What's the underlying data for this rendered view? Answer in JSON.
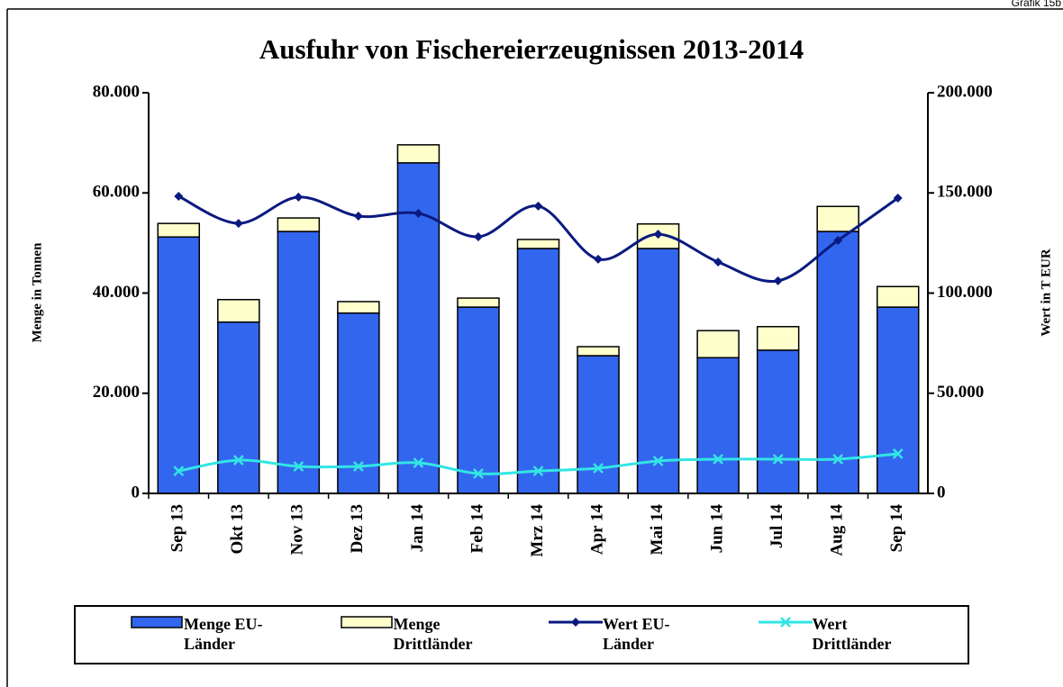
{
  "chart_data": {
    "type": "bar",
    "stacked": true,
    "title": "Ausfuhr von Fischereierzeugnissen 2013-2014",
    "corner_label": "Grafik 15b",
    "y_label": "Menge in Tonnen",
    "y2_label": "Wert in T EUR",
    "categories": [
      "Sep 13",
      "Okt 13",
      "Nov 13",
      "Dez 13",
      "Jan 14",
      "Feb 14",
      "Mrz 14",
      "Apr 14",
      "Mai 14",
      "Jun 14",
      "Jul 14",
      "Aug 14",
      "Sep 14"
    ],
    "ylim": [
      0,
      80000
    ],
    "yticks": [
      0,
      {
        "value": 20000,
        "label": "20.000"
      },
      {
        "value": 40000,
        "label": "40.000"
      },
      {
        "value": 60000,
        "label": "60.000"
      },
      {
        "value": 80000,
        "label": "80.000"
      }
    ],
    "y2lim": [
      0,
      200000
    ],
    "y2ticks": [
      0,
      {
        "value": 50000,
        "label": "50.000"
      },
      {
        "value": 100000,
        "label": "100.000"
      },
      {
        "value": 150000,
        "label": "150.000"
      },
      {
        "value": 200000,
        "label": "200.000"
      }
    ],
    "series": [
      {
        "name": "Menge EU-Länder",
        "type": "bar",
        "color": "#3366ee",
        "values": [
          51200,
          34200,
          52300,
          36000,
          66000,
          37200,
          48900,
          27500,
          48900,
          27100,
          28600,
          52300,
          37200
        ]
      },
      {
        "name": "Menge Drittländer",
        "type": "bar",
        "color": "#ffffcc",
        "values": [
          2700,
          4500,
          2700,
          2300,
          3600,
          1800,
          1800,
          1800,
          4900,
          5400,
          4700,
          5000,
          4100
        ]
      },
      {
        "name": "Wert EU-Länder",
        "type": "line",
        "axis": "y2",
        "color": "#0a1a80",
        "marker": "diamond",
        "values": [
          148300,
          134800,
          147900,
          138400,
          139800,
          128100,
          143400,
          116900,
          129400,
          115500,
          106100,
          126300,
          147400
        ]
      },
      {
        "name": "Wert Drittländer",
        "type": "line",
        "axis": "y2",
        "color": "#33e5e5",
        "marker": "x",
        "values": [
          11200,
          16600,
          13500,
          13500,
          15300,
          9900,
          11200,
          12600,
          16200,
          17100,
          17100,
          17100,
          19800
        ]
      }
    ]
  }
}
